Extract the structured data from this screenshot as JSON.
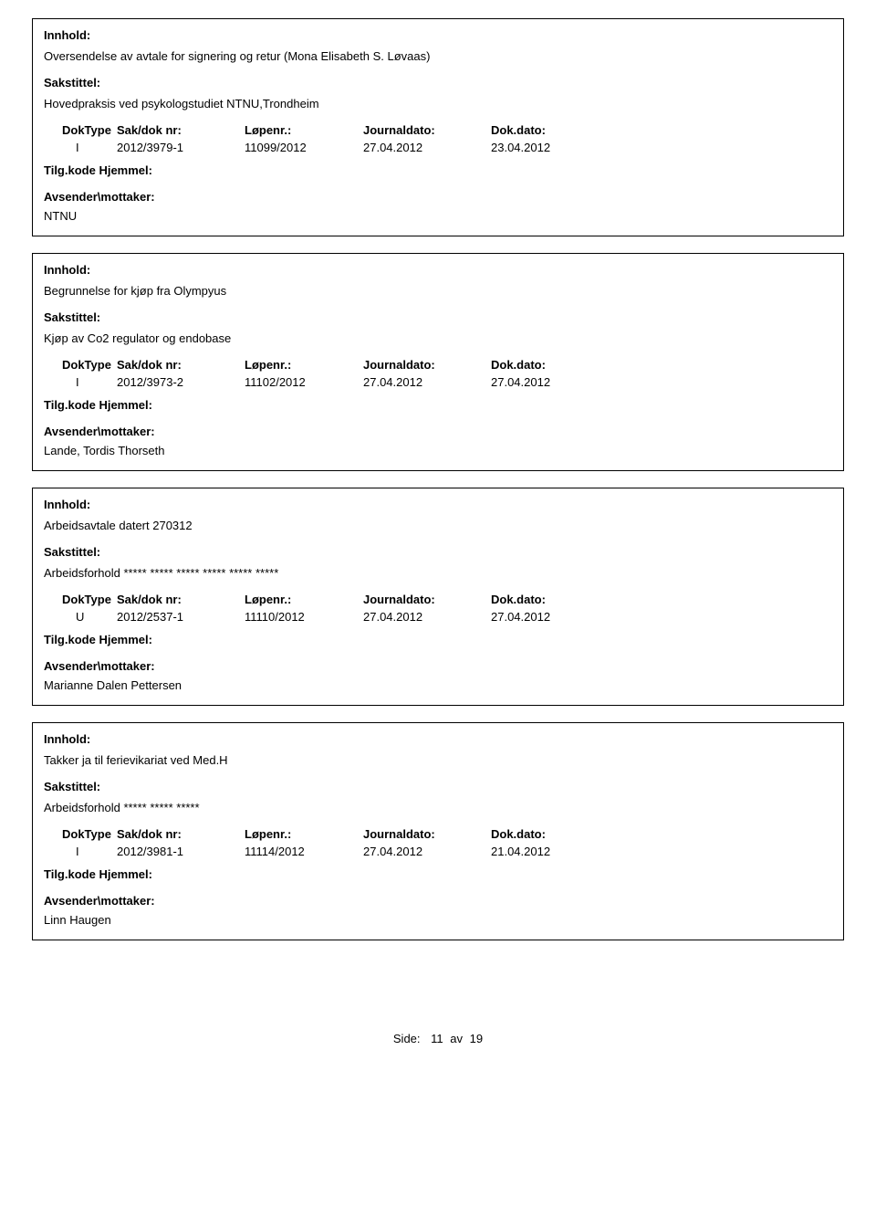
{
  "labels": {
    "innhold": "Innhold:",
    "sakstittel": "Sakstittel:",
    "doktype": "DokType",
    "saknr": "Sak/dok nr:",
    "lopenr": "Løpenr.:",
    "journaldato": "Journaldato:",
    "dokdato": "Dok.dato:",
    "tilgkode": "Tilg.kode",
    "hjemmel": "Hjemmel:",
    "avsender": "Avsender\\mottaker:"
  },
  "records": [
    {
      "innhold": "Oversendelse av avtale for signering og retur (Mona Elisabeth S. Løvaas)",
      "sakstittel": "Hovedpraksis ved psykologstudiet NTNU,Trondheim",
      "doktype": "I",
      "saknr": "2012/3979-1",
      "lopenr": "11099/2012",
      "journaldato": "27.04.2012",
      "dokdato": "23.04.2012",
      "avsender": "NTNU"
    },
    {
      "innhold": "Begrunnelse for kjøp fra Olympyus",
      "sakstittel": "Kjøp av Co2 regulator og endobase",
      "doktype": "I",
      "saknr": "2012/3973-2",
      "lopenr": "11102/2012",
      "journaldato": "27.04.2012",
      "dokdato": "27.04.2012",
      "avsender": "Lande, Tordis Thorseth"
    },
    {
      "innhold": "Arbeidsavtale datert 270312",
      "sakstittel": "Arbeidsforhold ***** ***** ***** ***** ***** *****",
      "doktype": "U",
      "saknr": "2012/2537-1",
      "lopenr": "11110/2012",
      "journaldato": "27.04.2012",
      "dokdato": "27.04.2012",
      "avsender": "Marianne Dalen Pettersen"
    },
    {
      "innhold": "Takker ja til ferievikariat ved Med.H",
      "sakstittel": "Arbeidsforhold ***** ***** *****",
      "doktype": "I",
      "saknr": "2012/3981-1",
      "lopenr": "11114/2012",
      "journaldato": "27.04.2012",
      "dokdato": "21.04.2012",
      "avsender": "Linn Haugen"
    }
  ],
  "footer": {
    "side_label": "Side:",
    "page": "11",
    "av_label": "av",
    "total": "19"
  }
}
